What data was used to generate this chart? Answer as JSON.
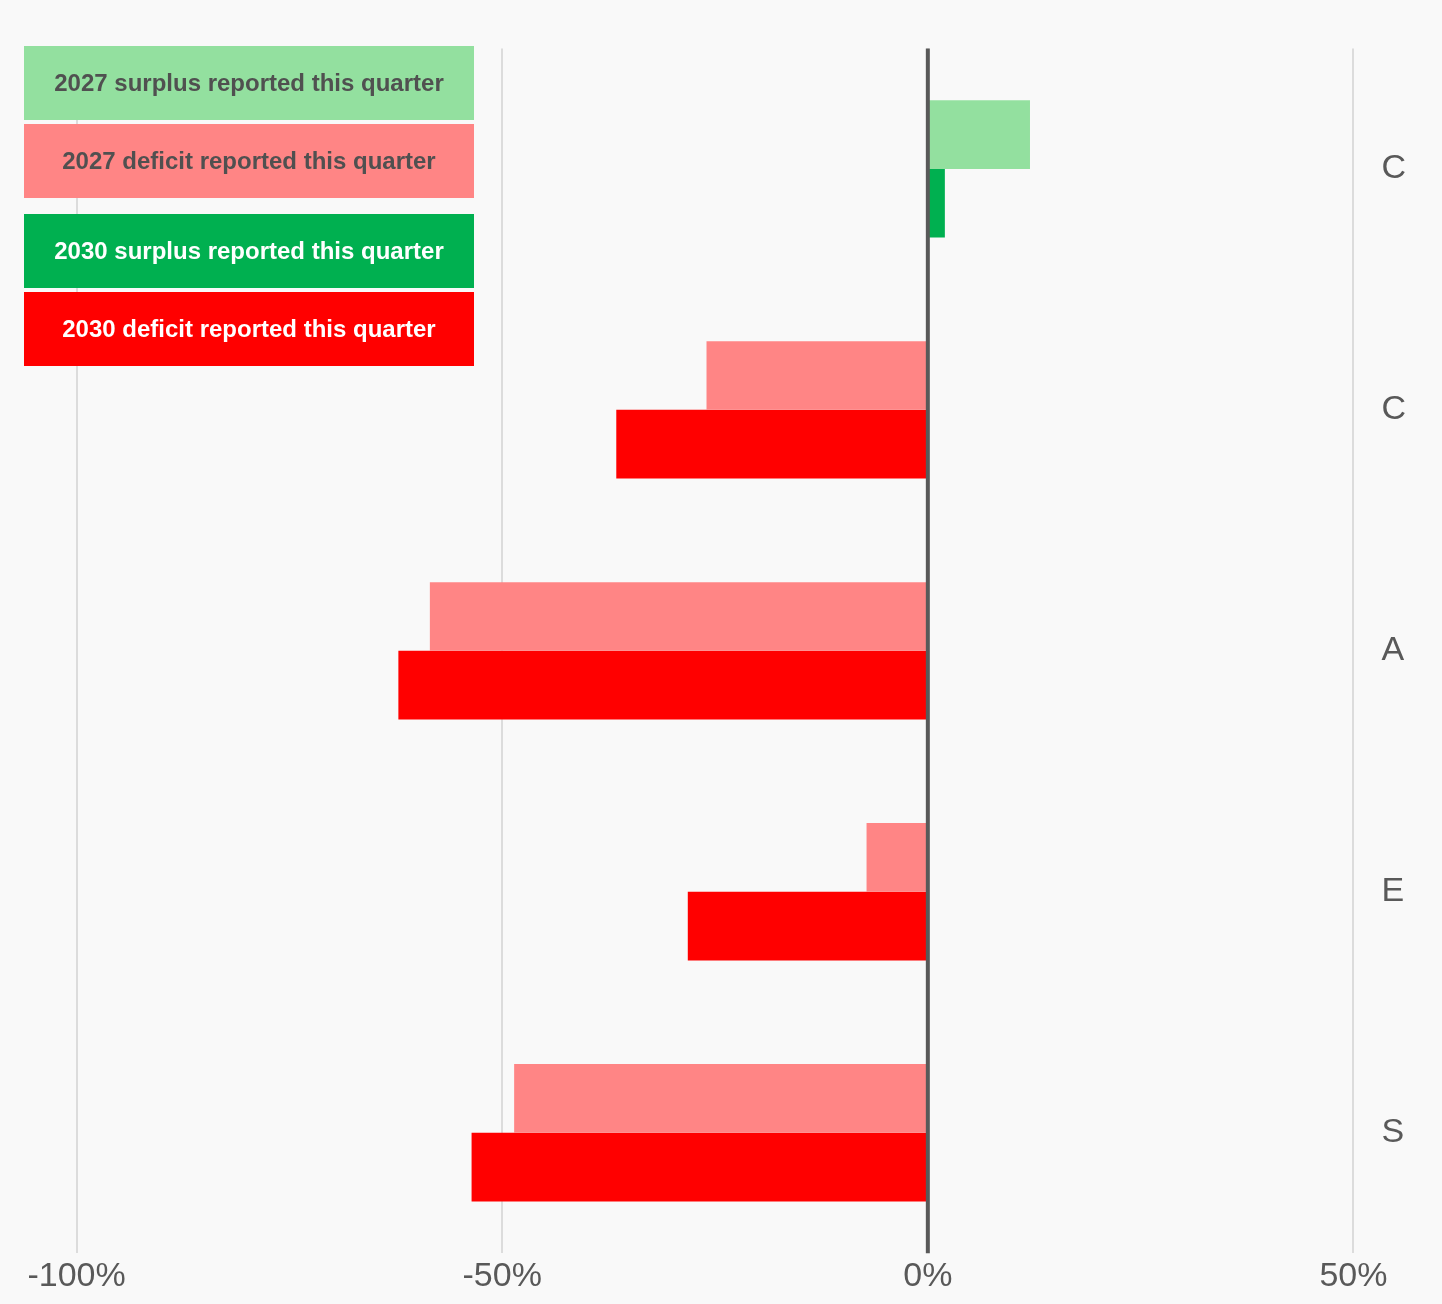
{
  "chart_data": {
    "type": "bar",
    "orientation": "horizontal",
    "categories": [
      "C",
      "C",
      "A",
      "E",
      "S"
    ],
    "series": [
      {
        "name": "2027 surplus reported this quarter",
        "color": "#93e09f",
        "values": [
          12,
          null,
          null,
          null,
          null
        ]
      },
      {
        "name": "2027 deficit reported this quarter",
        "color": "#ff8585",
        "values": [
          null,
          -26,
          -58.5,
          -7.2,
          -48.6
        ]
      },
      {
        "name": "2030 surplus reported this quarter",
        "color": "#00b050",
        "values": [
          2,
          null,
          null,
          null,
          null
        ]
      },
      {
        "name": "2030 deficit reported this quarter",
        "color": "#ff0000",
        "values": [
          null,
          -36.6,
          -62.2,
          -28.2,
          -53.6
        ]
      }
    ],
    "xlim": [
      -109,
      50
    ],
    "ref_lines": [
      {
        "axis": "x",
        "value": 0,
        "color": "#595959"
      }
    ],
    "xticks": [
      {
        "value": -100,
        "label": "-100%"
      },
      {
        "value": -50,
        "label": "-50%"
      },
      {
        "value": 0,
        "label": "0%"
      },
      {
        "value": 50,
        "label": "50%"
      }
    ],
    "grid": "x",
    "legend": "top left"
  }
}
